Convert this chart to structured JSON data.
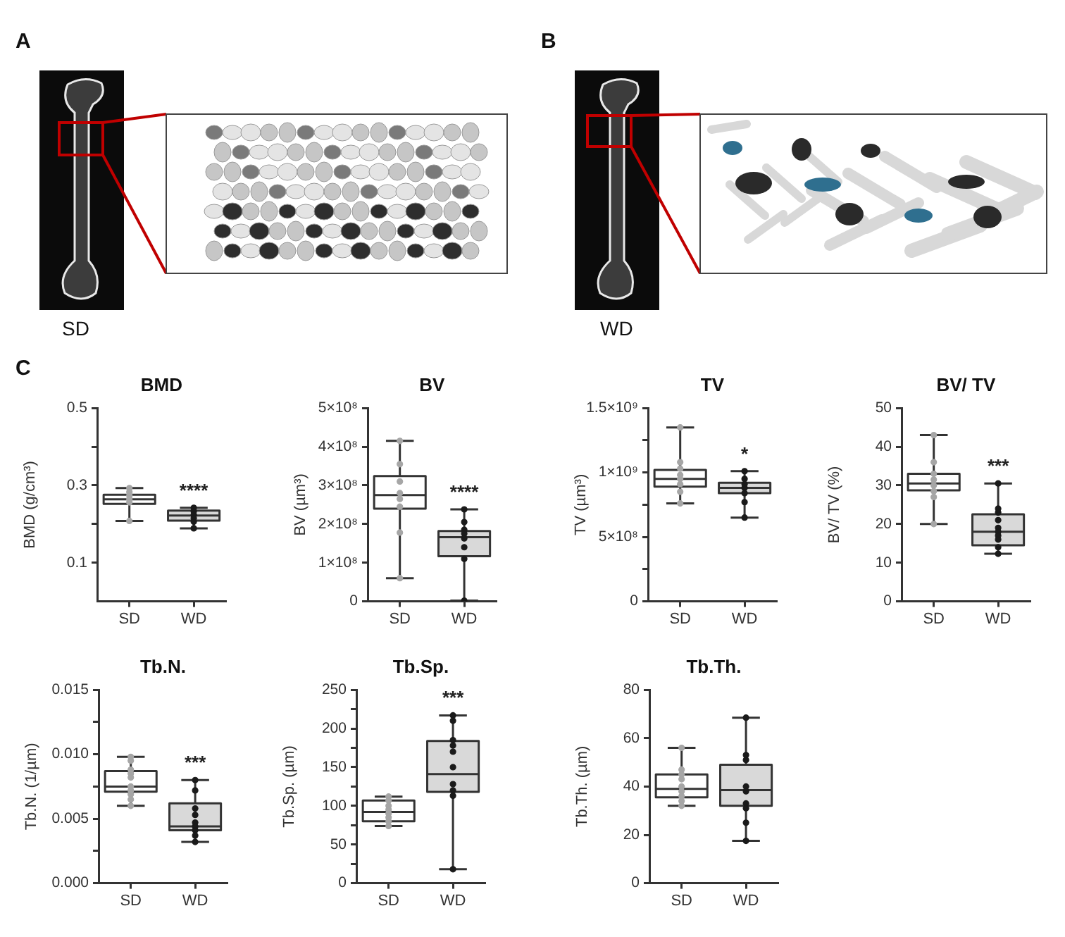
{
  "chart_data": [
    {
      "type": "other",
      "annotations": [
        "A",
        "SD",
        "B",
        "WD",
        "C"
      ]
    },
    {
      "type": "box",
      "title": "BMD",
      "ylabel": "BMD (g/cm³)",
      "categories": [
        "SD",
        "WD"
      ],
      "colors": [
        "#ffffff",
        "#d9d9d9"
      ],
      "marker": "circle",
      "boxes": [
        {
          "low": 0.208,
          "q1": 0.252,
          "median": 0.264,
          "q3": 0.276,
          "high": 0.293
        },
        {
          "low": 0.189,
          "q1": 0.209,
          "median": 0.222,
          "q3": 0.235,
          "high": 0.242
        }
      ],
      "series": [
        {
          "type": "scatter",
          "color": "#a6a6a6",
          "x": [
            "SD",
            "SD",
            "SD",
            "SD",
            "SD",
            "SD"
          ],
          "values": [
            0.293,
            0.283,
            0.274,
            0.265,
            0.256,
            0.208
          ]
        },
        {
          "type": "scatter",
          "color": "#1a1a1a",
          "x": [
            "WD",
            "WD",
            "WD",
            "WD",
            "WD",
            "WD"
          ],
          "values": [
            0.242,
            0.233,
            0.224,
            0.215,
            0.206,
            0.189
          ]
        }
      ],
      "ylim": [
        0,
        0.5
      ],
      "yticks": [
        0.1,
        {
          "value": 0.2,
          "label": null
        },
        0.3,
        {
          "value": 0.4,
          "label": null
        },
        0.5
      ],
      "annotations": [
        "****"
      ]
    },
    {
      "type": "box",
      "title": "BV",
      "ylabel": "BV (µm³)",
      "categories": [
        "SD",
        "WD"
      ],
      "colors": [
        "#ffffff",
        "#d9d9d9"
      ],
      "marker": "circle",
      "boxes": [
        {
          "low": 60000000,
          "q1": 240000000,
          "median": 275000000,
          "q3": 324000000,
          "high": 415000000
        },
        {
          "low": 2000000,
          "q1": 117000000,
          "median": 166000000,
          "q3": 182000000,
          "high": 238000000
        }
      ],
      "series": [
        {
          "type": "scatter",
          "color": "#a6a6a6",
          "x": [
            "SD",
            "SD",
            "SD",
            "SD",
            "SD",
            "SD",
            "SD",
            "SD"
          ],
          "values": [
            415000000,
            355000000,
            310000000,
            280000000,
            265000000,
            245000000,
            178000000,
            60000000
          ]
        },
        {
          "type": "scatter",
          "color": "#1a1a1a",
          "x": [
            "WD",
            "WD",
            "WD",
            "WD",
            "WD",
            "WD",
            "WD",
            "WD"
          ],
          "values": [
            238000000,
            205000000,
            185000000,
            175000000,
            163000000,
            140000000,
            110000000,
            2000000
          ]
        }
      ],
      "ylim": [
        0,
        500000000
      ],
      "yticks": [
        0,
        {
          "value": 100000000,
          "label": "1×10⁸"
        },
        {
          "value": 200000000,
          "label": "2×10⁸"
        },
        {
          "value": 300000000,
          "label": "3×10⁸"
        },
        {
          "value": 400000000,
          "label": "4×10⁸"
        },
        {
          "value": 500000000,
          "label": "5×10⁸"
        }
      ],
      "annotations": [
        "****"
      ]
    },
    {
      "type": "box",
      "title": "TV",
      "ylabel": "TV (µm³)",
      "categories": [
        "SD",
        "WD"
      ],
      "colors": [
        "#ffffff",
        "#d9d9d9"
      ],
      "marker": "circle",
      "boxes": [
        {
          "low": 760000000,
          "q1": 890000000,
          "median": 950000000,
          "q3": 1020000000,
          "high": 1350000000
        },
        {
          "low": 650000000,
          "q1": 840000000,
          "median": 880000000,
          "q3": 920000000,
          "high": 1010000000
        }
      ],
      "series": [
        {
          "type": "scatter",
          "color": "#a6a6a6",
          "x": [
            "SD",
            "SD",
            "SD",
            "SD",
            "SD",
            "SD",
            "SD",
            "SD"
          ],
          "values": [
            1350000000,
            1080000000,
            1030000000,
            980000000,
            950000000,
            910000000,
            850000000,
            760000000
          ]
        },
        {
          "type": "scatter",
          "color": "#1a1a1a",
          "x": [
            "WD",
            "WD",
            "WD",
            "WD",
            "WD",
            "WD",
            "WD"
          ],
          "values": [
            1010000000,
            950000000,
            910000000,
            880000000,
            840000000,
            770000000,
            650000000
          ]
        }
      ],
      "ylim": [
        0,
        1500000000
      ],
      "yticks": [
        0,
        {
          "value": 250000000,
          "label": null
        },
        {
          "value": 500000000,
          "label": "5×10⁸"
        },
        {
          "value": 750000000,
          "label": null
        },
        {
          "value": 1000000000,
          "label": "1×10⁹"
        },
        {
          "value": 1250000000,
          "label": null
        },
        {
          "value": 1500000000,
          "label": "1.5×10⁹"
        }
      ],
      "annotations": [
        "*"
      ]
    },
    {
      "type": "box",
      "title": "BV/ TV",
      "ylabel": "BV/ TV (%)",
      "categories": [
        "SD",
        "WD"
      ],
      "colors": [
        "#ffffff",
        "#d9d9d9"
      ],
      "marker": "circle",
      "boxes": [
        {
          "low": 20,
          "q1": 28.7,
          "median": 30.5,
          "q3": 33,
          "high": 43
        },
        {
          "low": 12.3,
          "q1": 14.5,
          "median": 18,
          "q3": 22.5,
          "high": 30.5
        }
      ],
      "series": [
        {
          "type": "scatter",
          "color": "#a6a6a6",
          "x": [
            "SD",
            "SD",
            "SD",
            "SD",
            "SD",
            "SD",
            "SD",
            "SD"
          ],
          "values": [
            43,
            36,
            33,
            31.5,
            30,
            28.5,
            27,
            20
          ]
        },
        {
          "type": "scatter",
          "color": "#1a1a1a",
          "x": [
            "WD",
            "WD",
            "WD",
            "WD",
            "WD",
            "WD",
            "WD",
            "WD",
            "WD",
            "WD"
          ],
          "values": [
            30.5,
            24,
            23,
            21,
            19,
            18,
            17,
            16,
            14,
            12.3
          ]
        }
      ],
      "ylim": [
        0,
        50
      ],
      "yticks": [
        0,
        10,
        20,
        30,
        40,
        50
      ],
      "annotations": [
        "***"
      ]
    },
    {
      "type": "box",
      "title": "Tb.N.",
      "ylabel": "Tb.N. (1/µm)",
      "categories": [
        "SD",
        "WD"
      ],
      "colors": [
        "#ffffff",
        "#d9d9d9"
      ],
      "marker": "circle",
      "boxes": [
        {
          "low": 0.006,
          "q1": 0.0071,
          "median": 0.0075,
          "q3": 0.0087,
          "high": 0.0098
        },
        {
          "low": 0.0032,
          "q1": 0.0041,
          "median": 0.0044,
          "q3": 0.0062,
          "high": 0.008
        }
      ],
      "series": [
        {
          "type": "scatter",
          "color": "#a6a6a6",
          "x": [
            "SD",
            "SD",
            "SD",
            "SD",
            "SD",
            "SD",
            "SD",
            "SD",
            "SD",
            "SD"
          ],
          "values": [
            0.0098,
            0.0095,
            0.0088,
            0.0085,
            0.0082,
            0.0075,
            0.0072,
            0.0069,
            0.0065,
            0.006
          ]
        },
        {
          "type": "scatter",
          "color": "#1a1a1a",
          "x": [
            "WD",
            "WD",
            "WD",
            "WD",
            "WD",
            "WD",
            "WD",
            "WD",
            "WD"
          ],
          "values": [
            0.008,
            0.0072,
            0.0058,
            0.0053,
            0.0047,
            0.0044,
            0.0041,
            0.0037,
            0.0032
          ]
        }
      ],
      "ylim": [
        0,
        0.015
      ],
      "yticks": [
        {
          "value": 0,
          "label": "0.000"
        },
        {
          "value": 0.0025,
          "label": null
        },
        0.005,
        {
          "value": 0.0075,
          "label": null
        },
        {
          "value": 0.01,
          "label": "0.010"
        },
        {
          "value": 0.0125,
          "label": null
        },
        {
          "value": 0.015,
          "label": "0.015"
        }
      ],
      "annotations": [
        "***"
      ]
    },
    {
      "type": "box",
      "title": "Tb.Sp.",
      "ylabel": "Tb.Sp. (µm)",
      "categories": [
        "SD",
        "WD"
      ],
      "colors": [
        "#ffffff",
        "#d9d9d9"
      ],
      "marker": "circle",
      "boxes": [
        {
          "low": 74,
          "q1": 80,
          "median": 92,
          "q3": 107,
          "high": 112
        },
        {
          "low": 18,
          "q1": 118,
          "median": 141,
          "q3": 184,
          "high": 217
        }
      ],
      "series": [
        {
          "type": "scatter",
          "color": "#a6a6a6",
          "x": [
            "SD",
            "SD",
            "SD",
            "SD",
            "SD",
            "SD",
            "SD",
            "SD"
          ],
          "values": [
            112,
            107,
            100,
            95,
            90,
            85,
            80,
            74
          ]
        },
        {
          "type": "scatter",
          "color": "#1a1a1a",
          "x": [
            "WD",
            "WD",
            "WD",
            "WD",
            "WD",
            "WD",
            "WD",
            "WD",
            "WD",
            "WD"
          ],
          "values": [
            217,
            210,
            185,
            178,
            170,
            150,
            128,
            120,
            113,
            18
          ]
        }
      ],
      "ylim": [
        0,
        250
      ],
      "yticks": [
        0,
        {
          "value": 25,
          "label": null
        },
        50,
        {
          "value": 75,
          "label": null
        },
        100,
        {
          "value": 125,
          "label": null
        },
        150,
        {
          "value": 175,
          "label": null
        },
        200,
        {
          "value": 225,
          "label": null
        },
        250
      ],
      "annotations": [
        "***"
      ]
    },
    {
      "type": "box",
      "title": "Tb.Th.",
      "ylabel": "Tb.Th. (µm)",
      "categories": [
        "SD",
        "WD"
      ],
      "colors": [
        "#ffffff",
        "#d9d9d9"
      ],
      "marker": "circle",
      "boxes": [
        {
          "low": 32,
          "q1": 35.5,
          "median": 39,
          "q3": 45,
          "high": 56
        },
        {
          "low": 17.5,
          "q1": 32,
          "median": 38.5,
          "q3": 49,
          "high": 68.5
        }
      ],
      "series": [
        {
          "type": "scatter",
          "color": "#a6a6a6",
          "x": [
            "SD",
            "SD",
            "SD",
            "SD",
            "SD",
            "SD",
            "SD",
            "SD",
            "SD"
          ],
          "values": [
            56,
            47,
            45,
            43,
            40,
            38,
            36,
            34,
            32
          ]
        },
        {
          "type": "scatter",
          "color": "#1a1a1a",
          "x": [
            "WD",
            "WD",
            "WD",
            "WD",
            "WD",
            "WD",
            "WD",
            "WD",
            "WD"
          ],
          "values": [
            68.5,
            53,
            51,
            40,
            38,
            33,
            31,
            25,
            17.5
          ]
        }
      ],
      "ylim": [
        0,
        80
      ],
      "yticks": [
        0,
        20,
        40,
        60,
        80
      ]
    }
  ]
}
